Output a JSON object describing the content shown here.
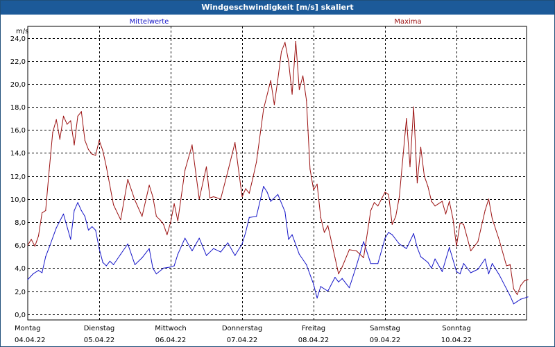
{
  "window": {
    "title": "Windgeschwindigkeit [m/s] skaliert"
  },
  "colors": {
    "mean": "#1515c8",
    "max": "#9b1010",
    "grid": "#000000",
    "title_bg": "#1c5a99"
  },
  "chart_data": {
    "type": "line",
    "title": "Windgeschwindigkeit [m/s] skaliert",
    "ylabel": "m/s",
    "xlabel": "",
    "ylim": [
      -0.5,
      25
    ],
    "yticks": [
      0.0,
      2.0,
      4.0,
      6.0,
      8.0,
      10.0,
      12.0,
      14.0,
      16.0,
      18.0,
      20.0,
      22.0,
      24.0
    ],
    "ytick_labels": [
      "0,0",
      "2,0",
      "4,0",
      "6,0",
      "8,0",
      "10,0",
      "12,0",
      "14,0",
      "16,0",
      "18,0",
      "20,0",
      "22,0",
      "24,0"
    ],
    "xlim": [
      0,
      7
    ],
    "x_unit": "days from Montag 04.04.22 00:00",
    "x_ticks": [
      {
        "day": "Montag",
        "date": "04.04.22"
      },
      {
        "day": "Dienstag",
        "date": "05.04.22"
      },
      {
        "day": "Mittwoch",
        "date": "06.04.22"
      },
      {
        "day": "Donnerstag",
        "date": "07.04.22"
      },
      {
        "day": "Freitag",
        "date": "08.04.22"
      },
      {
        "day": "Samstag",
        "date": "09.04.22"
      },
      {
        "day": "Sonntag",
        "date": "10.04.22"
      }
    ],
    "grid": true,
    "series": [
      {
        "name": "Mittelwerte",
        "color": "#1515c8",
        "x": [
          0.0,
          0.075,
          0.15,
          0.2,
          0.25,
          0.3,
          0.4,
          0.5,
          0.6,
          0.65,
          0.7,
          0.75,
          0.8,
          0.85,
          0.9,
          0.95,
          1.0,
          1.05,
          1.1,
          1.15,
          1.2,
          1.3,
          1.4,
          1.5,
          1.6,
          1.7,
          1.75,
          1.8,
          1.9,
          2.0,
          2.05,
          2.1,
          2.2,
          2.3,
          2.4,
          2.5,
          2.6,
          2.7,
          2.8,
          2.9,
          3.0,
          3.05,
          3.1,
          3.2,
          3.3,
          3.35,
          3.4,
          3.5,
          3.6,
          3.65,
          3.7,
          3.8,
          3.9,
          4.0,
          4.05,
          4.1,
          4.2,
          4.3,
          4.35,
          4.4,
          4.5,
          4.6,
          4.7,
          4.8,
          4.9,
          5.0,
          5.05,
          5.1,
          5.2,
          5.3,
          5.4,
          5.45,
          5.5,
          5.6,
          5.65,
          5.7,
          5.8,
          5.9,
          6.0,
          6.05,
          6.1,
          6.2,
          6.3,
          6.4,
          6.45,
          6.5,
          6.6,
          6.7,
          6.75,
          6.8,
          6.9,
          7.0
        ],
        "y": [
          3.0,
          3.5,
          3.8,
          3.6,
          5.0,
          5.8,
          7.5,
          8.7,
          6.5,
          9.0,
          9.7,
          9.0,
          8.5,
          7.3,
          7.6,
          7.3,
          5.7,
          4.5,
          4.2,
          4.6,
          4.3,
          5.2,
          6.1,
          4.3,
          4.9,
          5.7,
          4.0,
          3.5,
          4.0,
          4.1,
          4.2,
          5.2,
          6.6,
          5.5,
          6.6,
          5.1,
          5.7,
          5.4,
          6.2,
          5.1,
          6.1,
          7.1,
          8.4,
          8.5,
          11.1,
          10.6,
          9.8,
          10.4,
          8.9,
          6.5,
          6.9,
          5.2,
          4.3,
          2.6,
          1.4,
          2.4,
          2.0,
          3.2,
          2.8,
          3.1,
          2.3,
          4.2,
          6.3,
          4.4,
          4.4,
          6.6,
          7.1,
          6.9,
          6.1,
          5.7,
          7.0,
          5.8,
          5.0,
          4.5,
          4.0,
          4.8,
          3.7,
          5.8,
          3.7,
          3.5,
          4.4,
          3.6,
          3.9,
          4.8,
          3.5,
          4.4,
          3.4,
          2.2,
          1.6,
          0.9,
          1.3,
          1.5
        ]
      },
      {
        "name": "Maxima",
        "color": "#9b1010",
        "x": [
          0.0,
          0.05,
          0.1,
          0.15,
          0.2,
          0.25,
          0.3,
          0.35,
          0.4,
          0.45,
          0.5,
          0.55,
          0.6,
          0.65,
          0.7,
          0.75,
          0.8,
          0.85,
          0.9,
          0.95,
          1.0,
          1.05,
          1.1,
          1.2,
          1.3,
          1.4,
          1.5,
          1.6,
          1.7,
          1.75,
          1.8,
          1.85,
          1.9,
          1.95,
          2.0,
          2.05,
          2.1,
          2.2,
          2.3,
          2.4,
          2.5,
          2.55,
          2.6,
          2.7,
          2.8,
          2.9,
          3.0,
          3.05,
          3.1,
          3.15,
          3.2,
          3.3,
          3.4,
          3.45,
          3.5,
          3.55,
          3.6,
          3.65,
          3.7,
          3.75,
          3.8,
          3.85,
          3.9,
          3.95,
          4.0,
          4.05,
          4.1,
          4.15,
          4.2,
          4.3,
          4.35,
          4.4,
          4.5,
          4.6,
          4.7,
          4.8,
          4.85,
          4.9,
          5.0,
          5.05,
          5.1,
          5.15,
          5.2,
          5.3,
          5.35,
          5.4,
          5.45,
          5.5,
          5.55,
          5.6,
          5.65,
          5.7,
          5.8,
          5.85,
          5.9,
          5.95,
          6.0,
          6.05,
          6.1,
          6.2,
          6.3,
          6.4,
          6.45,
          6.5,
          6.6,
          6.7,
          6.75,
          6.8,
          6.85,
          6.9,
          6.95,
          7.0
        ],
        "y": [
          6.0,
          6.5,
          5.9,
          6.8,
          8.8,
          9.0,
          12.5,
          15.8,
          16.9,
          15.2,
          17.2,
          16.5,
          16.8,
          14.7,
          17.2,
          17.6,
          15.1,
          14.3,
          13.9,
          13.8,
          15.1,
          14.2,
          12.8,
          9.5,
          8.2,
          11.7,
          9.9,
          8.5,
          11.2,
          10.2,
          8.5,
          8.2,
          7.8,
          6.9,
          8.0,
          9.6,
          8.1,
          12.5,
          14.7,
          10.0,
          12.8,
          10.1,
          10.2,
          10.0,
          12.4,
          14.9,
          10.2,
          10.9,
          10.5,
          11.8,
          13.2,
          17.8,
          20.3,
          18.2,
          20.4,
          22.8,
          23.6,
          22.0,
          19.1,
          23.7,
          19.5,
          20.7,
          18.6,
          12.6,
          10.8,
          11.3,
          8.4,
          7.1,
          7.7,
          4.9,
          3.5,
          4.1,
          5.6,
          5.5,
          4.9,
          9.0,
          9.7,
          9.4,
          10.6,
          10.4,
          7.8,
          8.5,
          10.2,
          17.0,
          12.8,
          18.0,
          11.4,
          14.5,
          12.0,
          11.1,
          9.8,
          9.4,
          9.8,
          8.7,
          9.8,
          8.3,
          5.9,
          7.9,
          7.8,
          5.5,
          6.3,
          9.0,
          10.0,
          8.3,
          6.4,
          4.2,
          4.3,
          2.2,
          1.7,
          2.5,
          2.9,
          3.0
        ]
      }
    ]
  }
}
